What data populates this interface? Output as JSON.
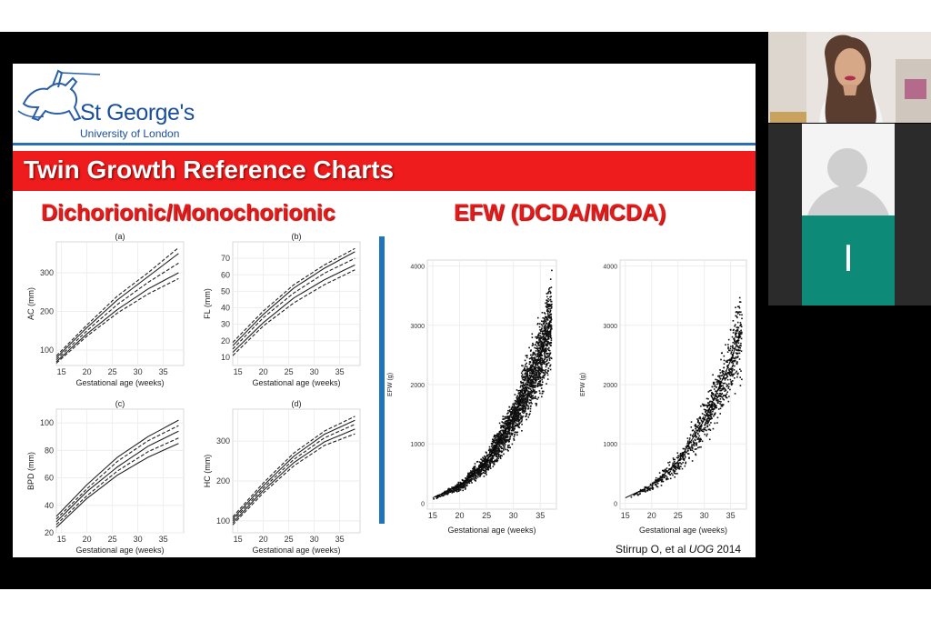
{
  "slide": {
    "logo_name": "St George's",
    "logo_sub": "University of London",
    "banner_title": "Twin Growth Reference Charts",
    "left_heading": "Dichorionic/Monochorionic",
    "right_heading": "EFW (DCDA/MCDA)",
    "citation_prefix": "Stirrup O, et al ",
    "citation_journal": "UOG",
    "citation_year": " 2014"
  },
  "participants": {
    "user_initial": "I"
  },
  "colors": {
    "banner_red": "#ee1c1c",
    "heading_red": "#e41b1b",
    "logo_blue": "#1a4f9c",
    "divider_blue": "#1f75bc",
    "avatar_teal": "#0e8a78"
  },
  "chart_data": [
    {
      "type": "line",
      "panel": "(a)",
      "xlabel": "Gestational age (weeks)",
      "ylabel": "AC (mm)",
      "xlim": [
        14,
        39
      ],
      "ylim": [
        60,
        380
      ],
      "xticks": [
        15,
        20,
        25,
        30,
        35
      ],
      "yticks": [
        100,
        200,
        300
      ],
      "series": [
        {
          "style": "dashed",
          "x": [
            14,
            20,
            26,
            32,
            38
          ],
          "y": [
            85,
            165,
            240,
            300,
            365
          ]
        },
        {
          "style": "solid",
          "x": [
            14,
            20,
            26,
            32,
            38
          ],
          "y": [
            80,
            158,
            230,
            290,
            350
          ]
        },
        {
          "style": "dashed",
          "x": [
            14,
            20,
            26,
            32,
            38
          ],
          "y": [
            75,
            150,
            218,
            275,
            325
          ]
        },
        {
          "style": "solid",
          "x": [
            14,
            20,
            26,
            32,
            38
          ],
          "y": [
            70,
            142,
            205,
            258,
            300
          ]
        },
        {
          "style": "dashed",
          "x": [
            14,
            20,
            26,
            32,
            38
          ],
          "y": [
            66,
            136,
            196,
            245,
            285
          ]
        }
      ]
    },
    {
      "type": "line",
      "panel": "(b)",
      "xlabel": "Gestational age (weeks)",
      "ylabel": "FL (mm)",
      "xlim": [
        14,
        39
      ],
      "ylim": [
        5,
        80
      ],
      "xticks": [
        15,
        20,
        25,
        30,
        35
      ],
      "yticks": [
        10,
        20,
        30,
        40,
        50,
        60,
        70
      ],
      "series": [
        {
          "style": "dashed",
          "x": [
            14,
            20,
            26,
            32,
            38
          ],
          "y": [
            19,
            38,
            54,
            66,
            76
          ]
        },
        {
          "style": "solid",
          "x": [
            14,
            20,
            26,
            32,
            38
          ],
          "y": [
            17,
            36,
            52,
            64,
            74
          ]
        },
        {
          "style": "dashed",
          "x": [
            14,
            20,
            26,
            32,
            38
          ],
          "y": [
            15,
            34,
            49,
            61,
            70
          ]
        },
        {
          "style": "solid",
          "x": [
            14,
            20,
            26,
            32,
            38
          ],
          "y": [
            13,
            31,
            46,
            57,
            66
          ]
        },
        {
          "style": "dashed",
          "x": [
            14,
            20,
            26,
            32,
            38
          ],
          "y": [
            11,
            29,
            43,
            54,
            63
          ]
        }
      ]
    },
    {
      "type": "line",
      "panel": "(c)",
      "xlabel": "Gestational age (weeks)",
      "ylabel": "BPD (mm)",
      "xlim": [
        14,
        39
      ],
      "ylim": [
        20,
        110
      ],
      "xticks": [
        15,
        20,
        25,
        30,
        35
      ],
      "yticks": [
        20,
        40,
        60,
        80,
        100
      ],
      "series": [
        {
          "style": "solid",
          "x": [
            14,
            20,
            26,
            32,
            38
          ],
          "y": [
            32,
            55,
            75,
            90,
            102
          ]
        },
        {
          "style": "dashed",
          "x": [
            14,
            20,
            26,
            32,
            38
          ],
          "y": [
            30,
            52,
            72,
            87,
            98
          ]
        },
        {
          "style": "solid",
          "x": [
            14,
            20,
            26,
            32,
            38
          ],
          "y": [
            28,
            50,
            68,
            83,
            94
          ]
        },
        {
          "style": "dashed",
          "x": [
            14,
            20,
            26,
            32,
            38
          ],
          "y": [
            26,
            47,
            65,
            79,
            89
          ]
        },
        {
          "style": "solid",
          "x": [
            14,
            20,
            26,
            32,
            38
          ],
          "y": [
            24,
            45,
            62,
            75,
            85
          ]
        }
      ]
    },
    {
      "type": "line",
      "panel": "(d)",
      "xlabel": "Gestational age (weeks)",
      "ylabel": "HC (mm)",
      "xlim": [
        14,
        39
      ],
      "ylim": [
        70,
        380
      ],
      "xticks": [
        15,
        20,
        25,
        30,
        35
      ],
      "yticks": [
        100,
        200,
        300
      ],
      "series": [
        {
          "style": "dashed",
          "x": [
            14,
            20,
            26,
            32,
            38
          ],
          "y": [
            110,
            195,
            270,
            325,
            362
          ]
        },
        {
          "style": "solid",
          "x": [
            14,
            20,
            26,
            32,
            38
          ],
          "y": [
            105,
            188,
            262,
            317,
            352
          ]
        },
        {
          "style": "dashed",
          "x": [
            14,
            20,
            26,
            32,
            38
          ],
          "y": [
            100,
            182,
            254,
            308,
            342
          ]
        },
        {
          "style": "solid",
          "x": [
            14,
            20,
            26,
            32,
            38
          ],
          "y": [
            95,
            176,
            246,
            298,
            330
          ]
        },
        {
          "style": "dashed",
          "x": [
            14,
            20,
            26,
            32,
            38
          ],
          "y": [
            90,
            170,
            238,
            289,
            318
          ]
        }
      ]
    },
    {
      "type": "scatter",
      "panel": "DCDA",
      "xlabel": "Gestational age (weeks)",
      "ylabel": "EFW (g)",
      "xlim": [
        14,
        38
      ],
      "ylim": [
        -100,
        4100
      ],
      "xticks": [
        15,
        20,
        25,
        30,
        35
      ],
      "yticks": [
        0,
        1000,
        2000,
        3000,
        4000
      ],
      "curve": {
        "x": [
          15,
          20,
          25,
          30,
          35,
          37
        ],
        "y": [
          90,
          300,
          700,
          1450,
          2500,
          3100
        ]
      },
      "points_approx": 2500
    },
    {
      "type": "scatter",
      "panel": "MCDA",
      "xlabel": "Gestational age (weeks)",
      "ylabel": "EFW (g)",
      "xlim": [
        14,
        38
      ],
      "ylim": [
        -100,
        4100
      ],
      "xticks": [
        15,
        20,
        25,
        30,
        35
      ],
      "yticks": [
        0,
        1000,
        2000,
        3000,
        4000
      ],
      "curve": {
        "x": [
          15,
          20,
          25,
          30,
          35,
          37
        ],
        "y": [
          90,
          300,
          700,
          1400,
          2400,
          2900
        ]
      },
      "points_approx": 900
    }
  ]
}
